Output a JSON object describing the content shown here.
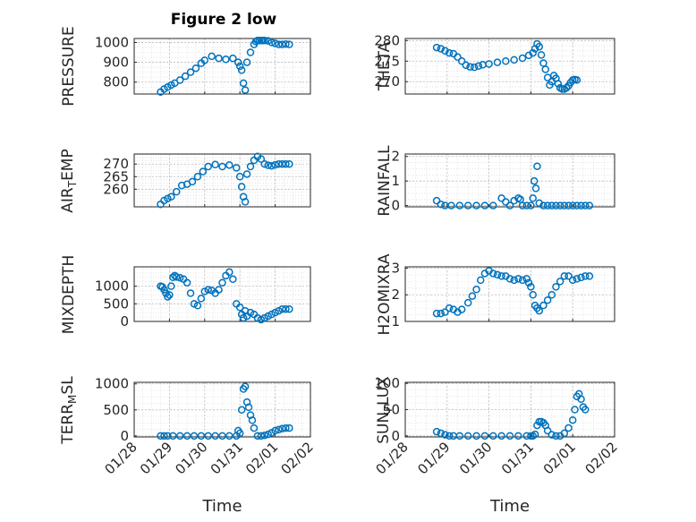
{
  "figure_title": "Figure 2 low",
  "chart_data": [
    {
      "type": "scatter",
      "ylabel_main": "PRESSURE",
      "ylabel_sub": "",
      "ylabel_tail": "",
      "title": "Figure 2 low",
      "xlabel": "",
      "ylim": [
        740,
        1020
      ],
      "yticks": [
        800,
        900,
        1000
      ],
      "xlim": [
        "01/28",
        "02/02"
      ],
      "xticks": [
        "01/28",
        "01/29",
        "01/30",
        "01/31",
        "02/01",
        "02/02"
      ],
      "grid": true,
      "color": "#0072BD",
      "series": [
        {
          "x": [
            0.75,
            0.85,
            0.95,
            1.05,
            1.15,
            1.3,
            1.45,
            1.6,
            1.75,
            1.9,
            2.0,
            2.2,
            2.4,
            2.6,
            2.8,
            2.95,
            3.0,
            3.05,
            3.1,
            3.15,
            3.2,
            3.3,
            3.4,
            3.45,
            3.5,
            3.55,
            3.6,
            3.65,
            3.7,
            3.8,
            3.9,
            4.0,
            4.1,
            4.2,
            4.3,
            4.4
          ],
          "y": [
            750,
            765,
            775,
            785,
            795,
            810,
            830,
            850,
            870,
            895,
            910,
            930,
            920,
            915,
            920,
            900,
            880,
            860,
            795,
            760,
            900,
            950,
            990,
            1005,
            1010,
            1010,
            1010,
            1010,
            1010,
            1008,
            1000,
            995,
            990,
            990,
            992,
            990
          ]
        }
      ]
    },
    {
      "type": "scatter",
      "ylabel_main": "THETA",
      "ylabel_sub": "",
      "ylabel_tail": "",
      "title": "",
      "xlabel": "",
      "ylim": [
        267,
        280.5
      ],
      "yticks": [
        270,
        275,
        280
      ],
      "xlim": [
        "01/28",
        "02/02"
      ],
      "xticks": [
        "01/28",
        "01/29",
        "01/30",
        "01/31",
        "02/01",
        "02/02"
      ],
      "grid": true,
      "color": "#0072BD",
      "series": [
        {
          "x": [
            0.75,
            0.85,
            0.95,
            1.05,
            1.15,
            1.25,
            1.35,
            1.45,
            1.55,
            1.65,
            1.75,
            1.85,
            2.0,
            2.2,
            2.4,
            2.6,
            2.8,
            2.95,
            3.05,
            3.1,
            3.15,
            3.2,
            3.25,
            3.3,
            3.35,
            3.4,
            3.45,
            3.5,
            3.55,
            3.6,
            3.65,
            3.7,
            3.75,
            3.8,
            3.85,
            3.9,
            3.95,
            4.0,
            4.05,
            4.1
          ],
          "y": [
            278.3,
            278,
            277.5,
            277,
            276.8,
            276,
            275,
            274,
            273.6,
            273.5,
            273.8,
            274.1,
            274.3,
            274.7,
            275,
            275.3,
            275.7,
            276.4,
            277,
            278,
            279.2,
            278.5,
            276.5,
            274.5,
            273,
            271,
            269.2,
            270,
            271.5,
            270.8,
            269.5,
            268.5,
            268.2,
            268.2,
            268.5,
            269,
            269.8,
            270.4,
            270.5,
            270.4
          ]
        }
      ]
    },
    {
      "type": "scatter",
      "ylabel_main": "AIR",
      "ylabel_sub": "T",
      "ylabel_tail": "EMP",
      "title": "",
      "xlabel": "",
      "ylim": [
        253,
        274
      ],
      "yticks": [
        260,
        265,
        270
      ],
      "xlim": [
        "01/28",
        "02/02"
      ],
      "xticks": [
        "01/28",
        "01/29",
        "01/30",
        "01/31",
        "02/01",
        "02/02"
      ],
      "grid": true,
      "color": "#0072BD",
      "series": [
        {
          "x": [
            0.75,
            0.85,
            0.95,
            1.05,
            1.2,
            1.35,
            1.5,
            1.65,
            1.8,
            1.95,
            2.1,
            2.3,
            2.5,
            2.7,
            2.9,
            3.0,
            3.05,
            3.1,
            3.15,
            3.2,
            3.3,
            3.4,
            3.5,
            3.6,
            3.7,
            3.8,
            3.9,
            4.0,
            4.1,
            4.2,
            4.3,
            4.4
          ],
          "y": [
            254,
            255.5,
            256.3,
            257,
            259,
            261.5,
            262,
            263,
            265,
            267,
            269,
            269.8,
            269,
            269.6,
            268.5,
            265,
            261,
            257,
            255,
            266,
            269,
            271.5,
            273,
            272,
            270,
            269.5,
            269.3,
            269.7,
            270,
            270,
            270,
            270
          ]
        }
      ]
    },
    {
      "type": "scatter",
      "ylabel_main": "RAINFALL",
      "ylabel_sub": "",
      "ylabel_tail": "",
      "title": "",
      "xlabel": "",
      "ylim": [
        -0.05,
        2.1
      ],
      "yticks": [
        0,
        1,
        2
      ],
      "xlim": [
        "01/28",
        "02/02"
      ],
      "xticks": [
        "01/28",
        "01/29",
        "01/30",
        "01/31",
        "02/01",
        "02/02"
      ],
      "grid": true,
      "color": "#0072BD",
      "series": [
        {
          "x": [
            0.75,
            0.85,
            0.95,
            1.1,
            1.3,
            1.5,
            1.7,
            1.9,
            2.1,
            2.3,
            2.4,
            2.5,
            2.6,
            2.7,
            2.75,
            2.8,
            2.9,
            3.0,
            3.05,
            3.08,
            3.12,
            3.15,
            3.2,
            3.3,
            3.4,
            3.5,
            3.6,
            3.7,
            3.8,
            3.9,
            4.0,
            4.1,
            4.2,
            4.3,
            4.4
          ],
          "y": [
            0.2,
            0.05,
            0,
            0,
            0,
            0,
            0,
            0,
            0,
            0.3,
            0.15,
            0,
            0.2,
            0.3,
            0.25,
            0,
            0,
            0,
            0.3,
            1.0,
            0.7,
            1.6,
            0.1,
            0,
            0,
            0,
            0,
            0,
            0,
            0,
            0,
            0,
            0,
            0,
            0
          ]
        }
      ]
    },
    {
      "type": "scatter",
      "ylabel_main": "MIXDEPTH",
      "ylabel_sub": "",
      "ylabel_tail": "",
      "title": "",
      "xlabel": "",
      "ylim": [
        0,
        1550
      ],
      "yticks": [
        0,
        500,
        1000
      ],
      "xlim": [
        "01/28",
        "02/02"
      ],
      "xticks": [
        "01/28",
        "01/29",
        "01/30",
        "01/31",
        "02/01",
        "02/02"
      ],
      "grid": true,
      "color": "#0072BD",
      "series": [
        {
          "x": [
            0.75,
            0.8,
            0.85,
            0.9,
            0.95,
            1.0,
            1.05,
            1.1,
            1.15,
            1.2,
            1.3,
            1.4,
            1.5,
            1.6,
            1.7,
            1.8,
            1.9,
            2.0,
            2.1,
            2.2,
            2.3,
            2.4,
            2.5,
            2.6,
            2.7,
            2.8,
            2.9,
            3.0,
            3.05,
            3.1,
            3.15,
            3.2,
            3.3,
            3.4,
            3.5,
            3.6,
            3.7,
            3.8,
            3.9,
            4.0,
            4.1,
            4.2,
            4.3,
            4.4
          ],
          "y": [
            1000,
            980,
            900,
            800,
            700,
            750,
            1000,
            1250,
            1300,
            1260,
            1240,
            1200,
            1100,
            800,
            500,
            450,
            650,
            850,
            900,
            880,
            800,
            900,
            1100,
            1300,
            1400,
            1200,
            500,
            400,
            200,
            100,
            300,
            150,
            250,
            200,
            100,
            50,
            100,
            150,
            200,
            250,
            300,
            350,
            350,
            350
          ]
        }
      ]
    },
    {
      "type": "scatter",
      "ylabel_main": "H2OMIXRA",
      "ylabel_sub": "",
      "ylabel_tail": "",
      "title": "",
      "xlabel": "",
      "ylim": [
        1,
        3.05
      ],
      "yticks": [
        1,
        2,
        3
      ],
      "xlim": [
        "01/28",
        "02/02"
      ],
      "xticks": [
        "01/28",
        "01/29",
        "01/30",
        "01/31",
        "02/01",
        "02/02"
      ],
      "grid": true,
      "color": "#0072BD",
      "series": [
        {
          "x": [
            0.75,
            0.85,
            0.95,
            1.05,
            1.15,
            1.25,
            1.35,
            1.5,
            1.6,
            1.7,
            1.8,
            1.9,
            2.0,
            2.1,
            2.2,
            2.3,
            2.4,
            2.5,
            2.6,
            2.7,
            2.8,
            2.9,
            2.95,
            3.0,
            3.05,
            3.1,
            3.15,
            3.2,
            3.3,
            3.4,
            3.5,
            3.6,
            3.7,
            3.8,
            3.9,
            4.0,
            4.1,
            4.2,
            4.3,
            4.4
          ],
          "y": [
            1.3,
            1.3,
            1.35,
            1.5,
            1.45,
            1.35,
            1.45,
            1.7,
            1.95,
            2.2,
            2.55,
            2.8,
            2.9,
            2.8,
            2.75,
            2.7,
            2.7,
            2.6,
            2.55,
            2.6,
            2.55,
            2.6,
            2.45,
            2.3,
            2.0,
            1.6,
            1.5,
            1.4,
            1.6,
            1.8,
            2.0,
            2.3,
            2.5,
            2.7,
            2.7,
            2.55,
            2.6,
            2.65,
            2.7,
            2.7
          ]
        }
      ]
    },
    {
      "type": "scatter",
      "ylabel_main": "TERR",
      "ylabel_sub": "M",
      "ylabel_tail": "SL",
      "title": "",
      "xlabel": "Time",
      "ylim": [
        -20,
        1030
      ],
      "yticks": [
        0,
        500,
        1000
      ],
      "xlim": [
        "01/28",
        "02/02"
      ],
      "xticks": [
        "01/28",
        "01/29",
        "01/30",
        "01/31",
        "02/01",
        "02/02"
      ],
      "grid": true,
      "color": "#0072BD",
      "series": [
        {
          "x": [
            0.75,
            0.85,
            0.95,
            1.1,
            1.3,
            1.5,
            1.7,
            1.9,
            2.1,
            2.3,
            2.5,
            2.7,
            2.9,
            2.95,
            3.0,
            3.05,
            3.1,
            3.15,
            3.2,
            3.25,
            3.3,
            3.35,
            3.4,
            3.5,
            3.6,
            3.7,
            3.8,
            3.9,
            4.0,
            4.1,
            4.2,
            4.3,
            4.4
          ],
          "y": [
            0,
            0,
            0,
            0,
            0,
            0,
            0,
            0,
            0,
            0,
            0,
            0,
            0,
            100,
            50,
            500,
            900,
            950,
            650,
            550,
            400,
            300,
            150,
            0,
            0,
            10,
            30,
            60,
            100,
            120,
            140,
            150,
            150
          ]
        }
      ]
    },
    {
      "type": "scatter",
      "ylabel_main": "SUN",
      "ylabel_sub": "F",
      "ylabel_tail": "LUX",
      "title": "",
      "xlabel": "Time",
      "ylim": [
        -2,
        102
      ],
      "yticks": [
        0,
        50,
        100
      ],
      "xlim": [
        "01/28",
        "02/02"
      ],
      "xticks": [
        "01/28",
        "01/29",
        "01/30",
        "01/31",
        "02/01",
        "02/02"
      ],
      "grid": true,
      "color": "#0072BD",
      "series": [
        {
          "x": [
            0.75,
            0.85,
            0.95,
            1.05,
            1.15,
            1.3,
            1.5,
            1.7,
            1.9,
            2.1,
            2.3,
            2.5,
            2.7,
            2.9,
            3.0,
            3.05,
            3.1,
            3.15,
            3.2,
            3.25,
            3.3,
            3.35,
            3.4,
            3.5,
            3.6,
            3.7,
            3.8,
            3.9,
            4.0,
            4.05,
            4.1,
            4.15,
            4.2,
            4.25,
            4.3
          ],
          "y": [
            8,
            5,
            2,
            0,
            0,
            0,
            0,
            0,
            0,
            0,
            0,
            0,
            0,
            0,
            0,
            0,
            3,
            20,
            27,
            27,
            25,
            20,
            10,
            2,
            0,
            0,
            5,
            15,
            30,
            50,
            75,
            80,
            70,
            55,
            50
          ]
        }
      ]
    }
  ]
}
